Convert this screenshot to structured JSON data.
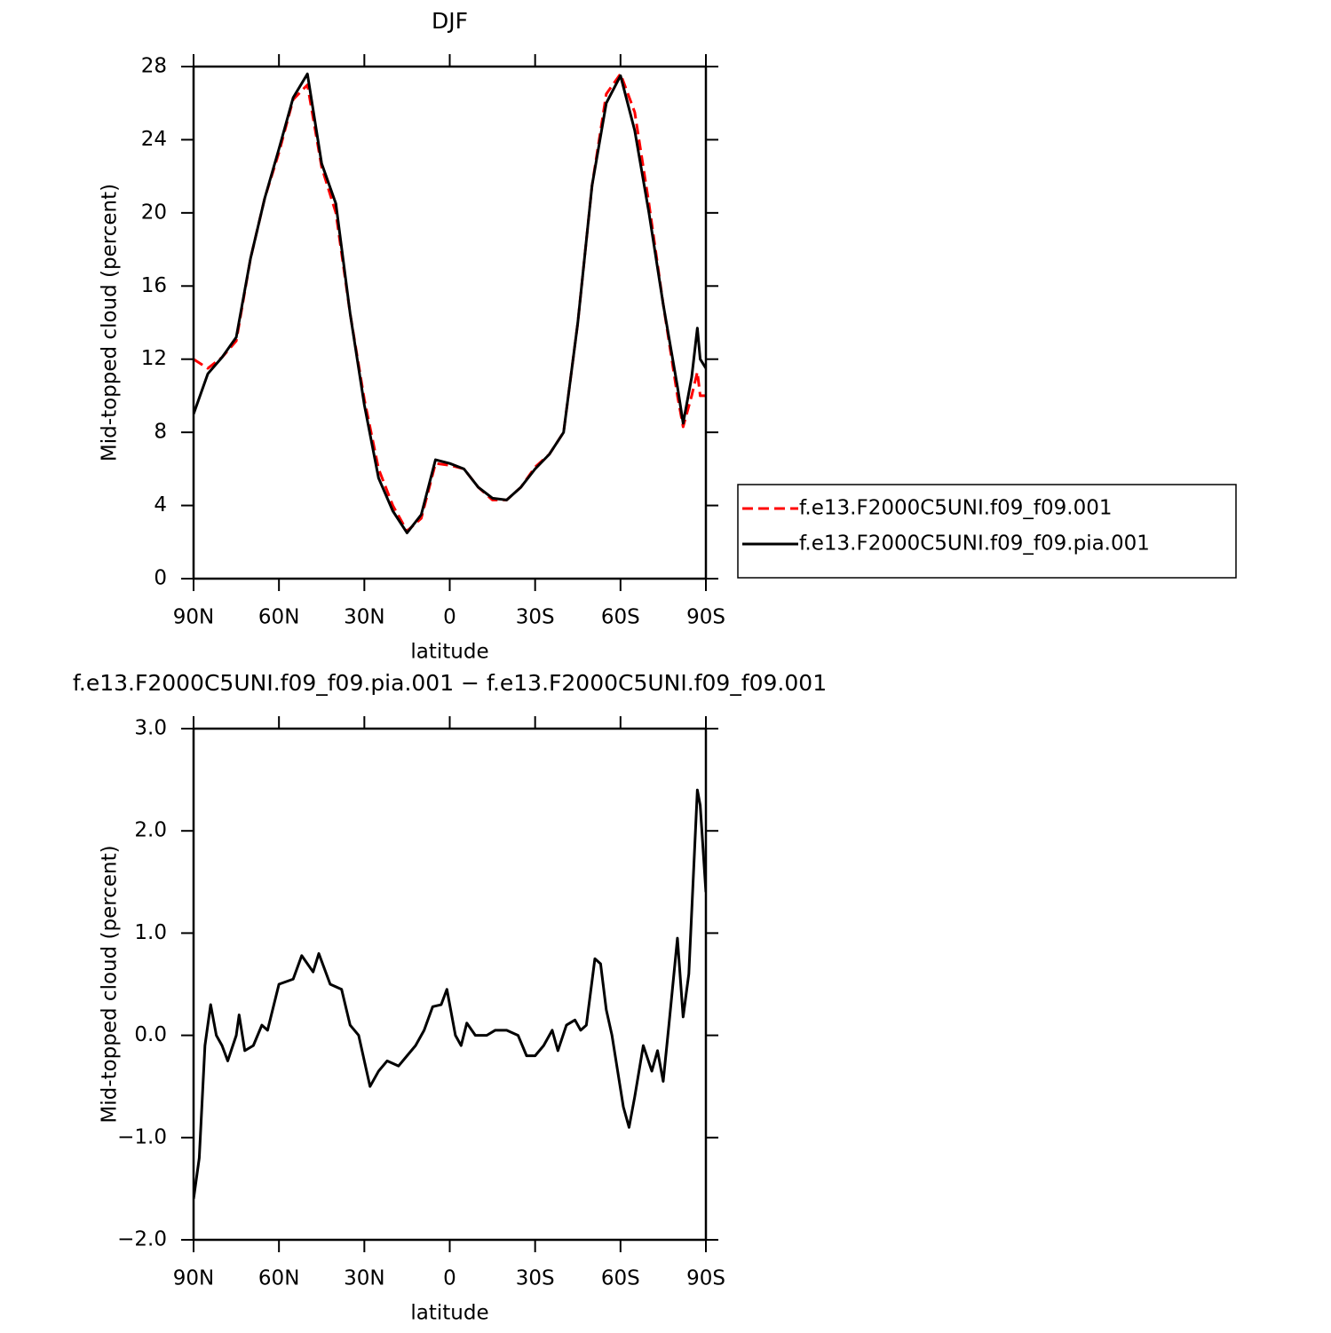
{
  "chart_data": [
    {
      "type": "line",
      "title": "DJF",
      "xlabel": "latitude",
      "ylabel": "Mid-topped cloud (percent)",
      "x": [
        90,
        85,
        80,
        75,
        70,
        65,
        60,
        55,
        50,
        45,
        40,
        35,
        30,
        25,
        20,
        15,
        10,
        5,
        0,
        -5,
        -10,
        -15,
        -20,
        -25,
        -30,
        -35,
        -40,
        -45,
        -50,
        -55,
        -60,
        -65,
        -70,
        -75,
        -80,
        -82,
        -85,
        -87,
        -88,
        -90
      ],
      "series": [
        {
          "name": "f.e13.F2000C5UNI.f09_f09.001",
          "color": "#ff0000",
          "dashed": true,
          "values": [
            12,
            11.5,
            12.1,
            13,
            17.5,
            20.8,
            23.3,
            26.2,
            27,
            22.5,
            20,
            14.5,
            9.8,
            6,
            4,
            2.6,
            3.3,
            6.3,
            6.2,
            6,
            5,
            4.3,
            4.3,
            5,
            6.1,
            6.8,
            8,
            14,
            21.5,
            26.5,
            27.6,
            25.5,
            20.5,
            15,
            10,
            8.3,
            10,
            11.3,
            10,
            10
          ]
        },
        {
          "name": "f.e13.F2000C5UNI.f09_f09.pia.001",
          "color": "#000000",
          "dashed": false,
          "values": [
            9,
            11.2,
            12.1,
            13.2,
            17.5,
            20.8,
            23.5,
            26.3,
            27.6,
            22.7,
            20.5,
            14.5,
            9.5,
            5.5,
            3.7,
            2.5,
            3.5,
            6.5,
            6.3,
            6,
            5,
            4.4,
            4.3,
            5,
            6,
            6.8,
            8,
            14,
            21.5,
            26,
            27.5,
            24.5,
            20,
            15,
            10.5,
            8.5,
            11,
            13.7,
            12,
            11.5
          ]
        }
      ],
      "xlim": [
        90,
        -90
      ],
      "xticks": [
        {
          "value": 90,
          "label": "90N"
        },
        {
          "value": 60,
          "label": "60N"
        },
        {
          "value": 30,
          "label": "30N"
        },
        0,
        {
          "value": -30,
          "label": "30S"
        },
        {
          "value": -60,
          "label": "60S"
        },
        {
          "value": -90,
          "label": "90S"
        }
      ],
      "ylim": [
        0,
        28
      ],
      "yticks": [
        0,
        4,
        8,
        12,
        16,
        20,
        24,
        28
      ],
      "legend": "right"
    },
    {
      "type": "line",
      "title": "f.e13.F2000C5UNI.f09_f09.pia.001 − f.e13.F2000C5UNI.f09_f09.001",
      "xlabel": "latitude",
      "ylabel": "Mid-topped cloud (percent)",
      "x": [
        90,
        88,
        86,
        84,
        82,
        80,
        78,
        75,
        74,
        72,
        69,
        66,
        64,
        60,
        55,
        52,
        48,
        46,
        42,
        38,
        35,
        32,
        30,
        28,
        25,
        22,
        18,
        15,
        12,
        9,
        6,
        3,
        1,
        -2,
        -4,
        -6,
        -9,
        -13,
        -16,
        -20,
        -24,
        -27,
        -30,
        -33,
        -36,
        -38,
        -41,
        -44,
        -46,
        -48,
        -51,
        -53,
        -55,
        -57,
        -61,
        -63,
        -65,
        -68,
        -71,
        -73,
        -75,
        -77,
        -80,
        -82,
        -84,
        -87,
        -88,
        -90
      ],
      "series": [
        {
          "name": null,
          "color": "#000000",
          "dashed": false,
          "values": [
            -1.6,
            -1.2,
            -0.1,
            0.3,
            0.0,
            -0.1,
            -0.25,
            0.0,
            0.2,
            -0.15,
            -0.1,
            0.1,
            0.05,
            0.5,
            0.55,
            0.78,
            0.62,
            0.8,
            0.5,
            0.45,
            0.1,
            0.0,
            -0.25,
            -0.5,
            -0.35,
            -0.25,
            -0.3,
            -0.2,
            -0.1,
            0.05,
            0.28,
            0.3,
            0.45,
            0.0,
            -0.1,
            0.12,
            0.0,
            0.0,
            0.05,
            0.05,
            0.0,
            -0.2,
            -0.2,
            -0.1,
            0.05,
            -0.15,
            0.1,
            0.15,
            0.05,
            0.1,
            0.75,
            0.7,
            0.25,
            0.0,
            -0.7,
            -0.9,
            -0.6,
            -0.1,
            -0.35,
            -0.15,
            -0.45,
            0.1,
            0.95,
            0.18,
            0.6,
            2.4,
            2.25,
            1.4
          ]
        }
      ],
      "xlim": [
        90,
        -90
      ],
      "xticks": [
        {
          "value": 90,
          "label": "90N"
        },
        {
          "value": 60,
          "label": "60N"
        },
        {
          "value": 30,
          "label": "30N"
        },
        0,
        {
          "value": -30,
          "label": "30S"
        },
        {
          "value": -60,
          "label": "60S"
        },
        {
          "value": -90,
          "label": "90S"
        }
      ],
      "ylim": [
        -2,
        3
      ],
      "yticks": [
        {
          "value": -2,
          "label": "−2.0"
        },
        {
          "value": -1,
          "label": "−1.0"
        },
        {
          "value": 0,
          "label": "0.0"
        },
        {
          "value": 1,
          "label": "1.0"
        },
        {
          "value": 2,
          "label": "2.0"
        },
        {
          "value": 3,
          "label": "3.0"
        }
      ]
    }
  ]
}
